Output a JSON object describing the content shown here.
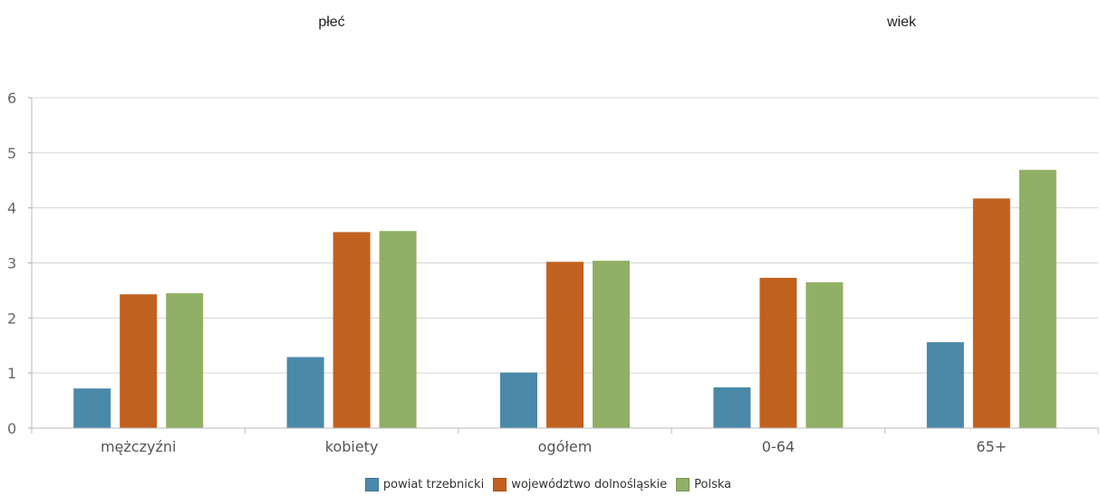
{
  "group_headers": {
    "left": "płeć",
    "right": "wiek"
  },
  "chart_data": {
    "type": "bar",
    "categories": [
      "mężczyźni",
      "kobiety",
      "ogółem",
      "0-64",
      "65+"
    ],
    "series": [
      {
        "name": "powiat trzebnicki",
        "color": "#4a89a8",
        "values": [
          0.72,
          1.29,
          1.01,
          0.74,
          1.56
        ]
      },
      {
        "name": "województwo dolnośląskie",
        "color": "#c1611f",
        "values": [
          2.43,
          3.56,
          3.02,
          2.73,
          4.17
        ]
      },
      {
        "name": "Polska",
        "color": "#90b065",
        "values": [
          2.45,
          3.58,
          3.04,
          2.65,
          4.69
        ]
      }
    ],
    "ylim": [
      0,
      6
    ],
    "yticks": [
      "0",
      "1",
      "2",
      "3",
      "4",
      "5",
      "6"
    ],
    "grid": true,
    "legend_position": "bottom-center",
    "title": "",
    "xlabel": "",
    "ylabel": ""
  }
}
